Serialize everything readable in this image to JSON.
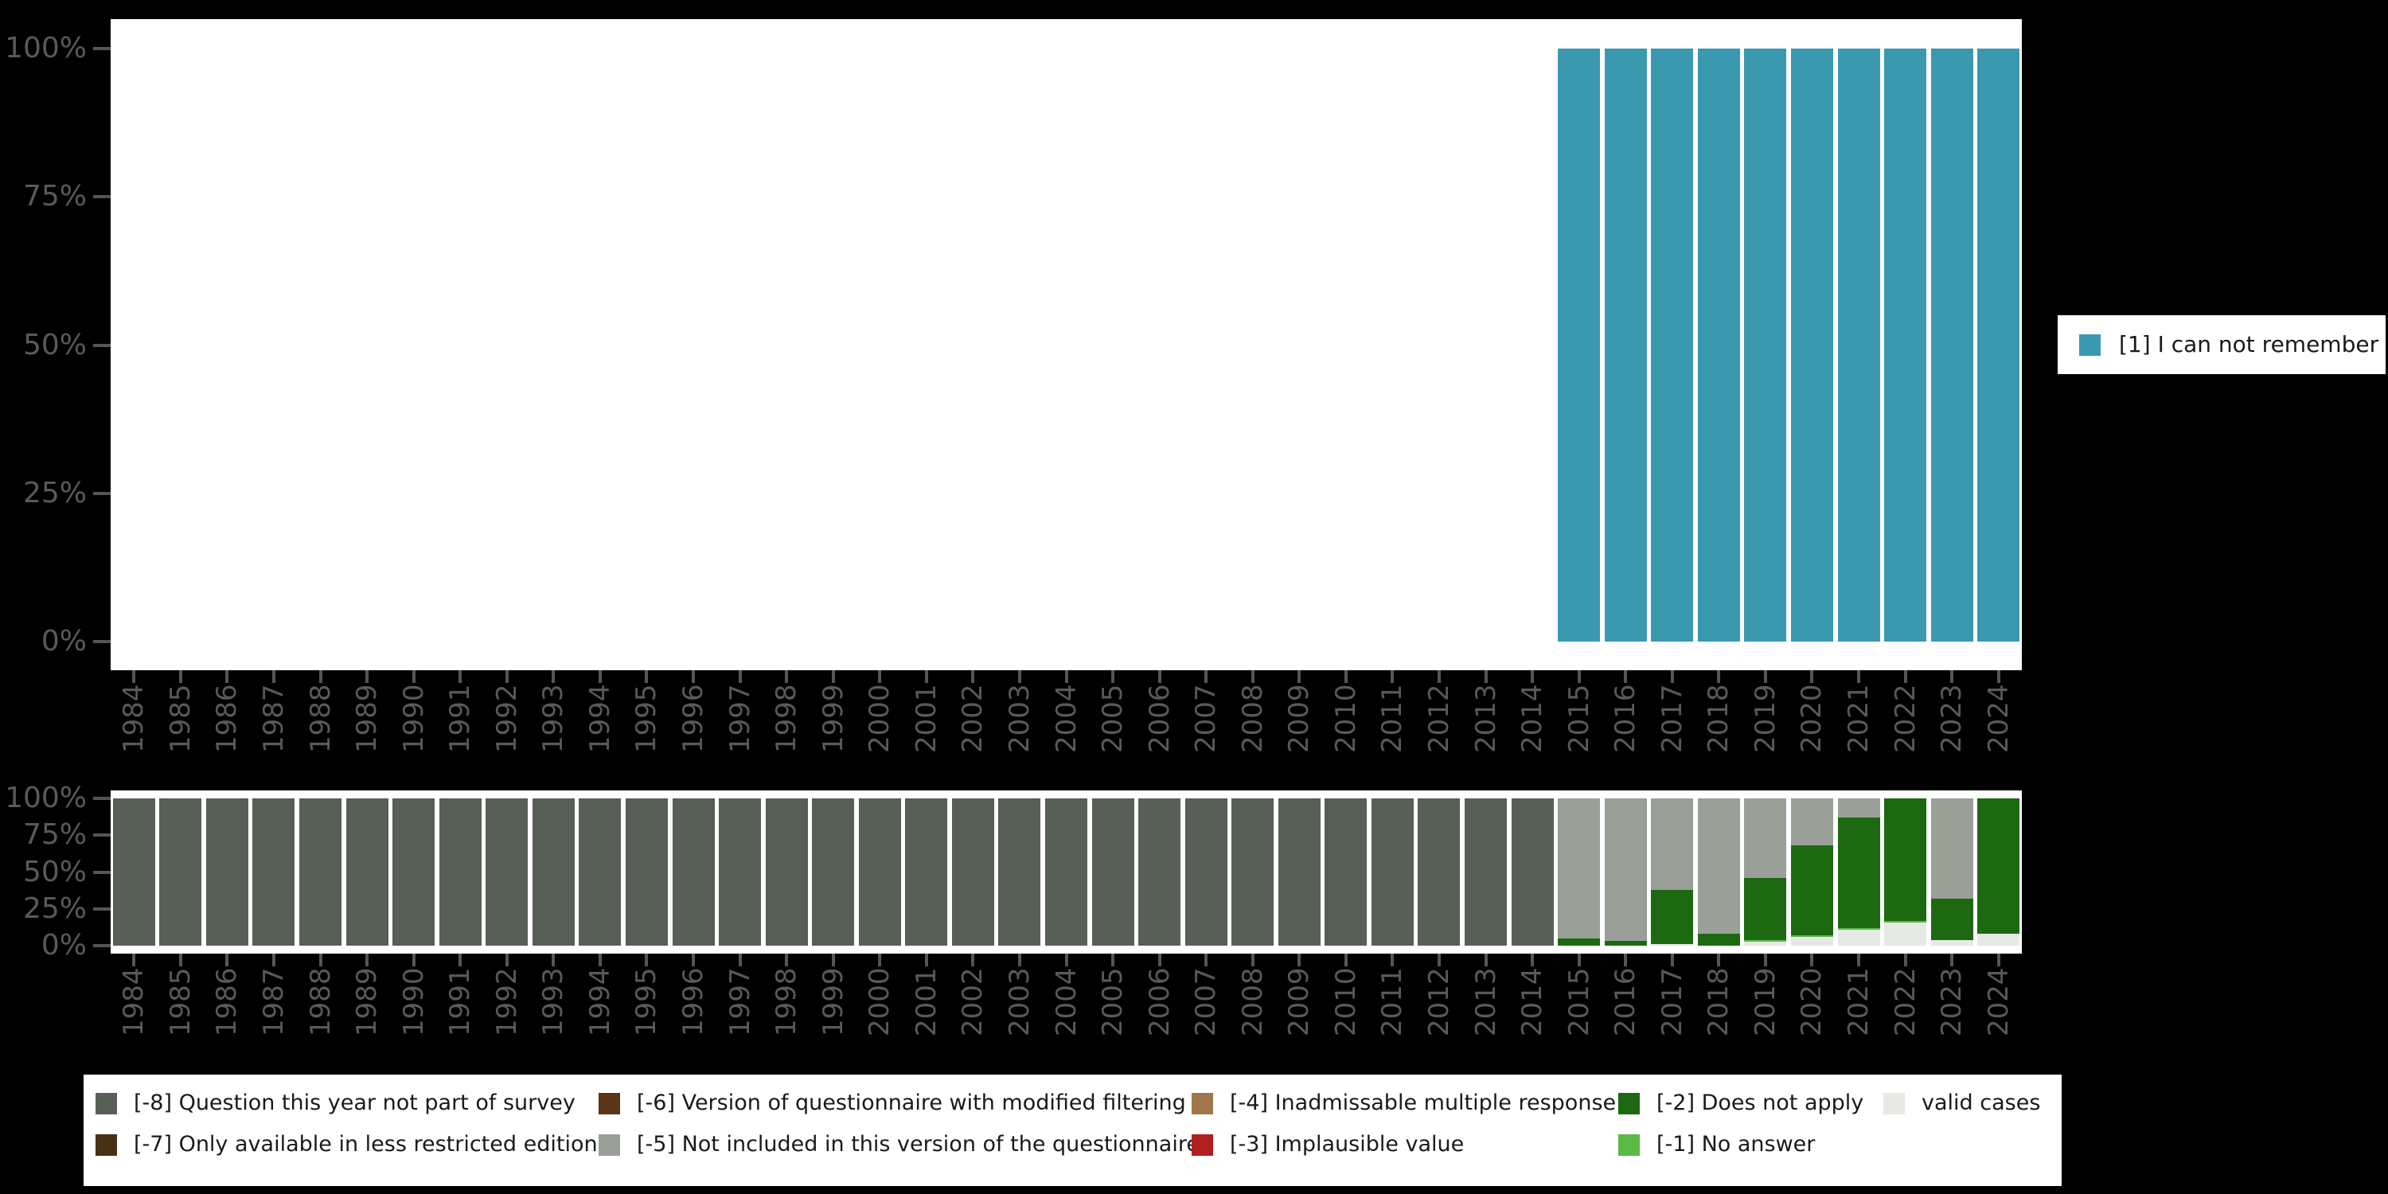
{
  "figure": {
    "background_color": "#000000",
    "plot_background_color": "#ffffff",
    "axis_text_color": "#58595B",
    "tick_color": "#555555",
    "legend_text_color": "#1a1a1a"
  },
  "axis": {
    "y_tick_labels": [
      "100%",
      "75%",
      "50%",
      "25%",
      "0%"
    ],
    "years": [
      "1984",
      "1985",
      "1986",
      "1987",
      "1988",
      "1989",
      "1990",
      "1991",
      "1992",
      "1993",
      "1994",
      "1995",
      "1996",
      "1997",
      "1998",
      "1999",
      "2000",
      "2001",
      "2002",
      "2003",
      "2004",
      "2005",
      "2006",
      "2007",
      "2008",
      "2009",
      "2010",
      "2011",
      "2012",
      "2013",
      "2014",
      "2015",
      "2016",
      "2017",
      "2018",
      "2019",
      "2020",
      "2021",
      "2022",
      "2023",
      "2024"
    ]
  },
  "chart_data": [
    {
      "id": "values-chart",
      "type": "bar",
      "stacked": true,
      "title": "",
      "xlabel": "",
      "ylabel": "",
      "ylim": [
        0,
        100
      ],
      "grid": false,
      "legend_position": "right",
      "ytick_labels": [
        "100%",
        "75%",
        "50%",
        "25%",
        "0%"
      ],
      "categories": [
        "1984",
        "1985",
        "1986",
        "1987",
        "1988",
        "1989",
        "1990",
        "1991",
        "1992",
        "1993",
        "1994",
        "1995",
        "1996",
        "1997",
        "1998",
        "1999",
        "2000",
        "2001",
        "2002",
        "2003",
        "2004",
        "2005",
        "2006",
        "2007",
        "2008",
        "2009",
        "2010",
        "2011",
        "2012",
        "2013",
        "2014",
        "2015",
        "2016",
        "2017",
        "2018",
        "2019",
        "2020",
        "2021",
        "2022",
        "2023",
        "2024"
      ],
      "series": [
        {
          "name": "[1] I can not remember",
          "color": "#3A99AE",
          "values": [
            0,
            0,
            0,
            0,
            0,
            0,
            0,
            0,
            0,
            0,
            0,
            0,
            0,
            0,
            0,
            0,
            0,
            0,
            0,
            0,
            0,
            0,
            0,
            0,
            0,
            0,
            0,
            0,
            0,
            0,
            0,
            100,
            100,
            100,
            100,
            100,
            100,
            100,
            100,
            100,
            100
          ]
        }
      ]
    },
    {
      "id": "missings-chart",
      "type": "bar",
      "stacked": true,
      "title": "",
      "xlabel": "",
      "ylabel": "",
      "ylim": [
        0,
        100
      ],
      "grid": false,
      "legend_position": "bottom",
      "ytick_labels": [
        "100%",
        "75%",
        "50%",
        "25%",
        "0%"
      ],
      "categories": [
        "1984",
        "1985",
        "1986",
        "1987",
        "1988",
        "1989",
        "1990",
        "1991",
        "1992",
        "1993",
        "1994",
        "1995",
        "1996",
        "1997",
        "1998",
        "1999",
        "2000",
        "2001",
        "2002",
        "2003",
        "2004",
        "2005",
        "2006",
        "2007",
        "2008",
        "2009",
        "2010",
        "2011",
        "2012",
        "2013",
        "2014",
        "2015",
        "2016",
        "2017",
        "2018",
        "2019",
        "2020",
        "2021",
        "2022",
        "2023",
        "2024"
      ],
      "series": [
        {
          "name": "valid cases",
          "color": "#E6E9E4",
          "values": [
            0,
            0,
            0,
            0,
            0,
            0,
            0,
            0,
            0,
            0,
            0,
            0,
            0,
            0,
            0,
            0,
            0,
            0,
            0,
            0,
            0,
            0,
            0,
            0,
            0,
            0,
            0,
            0,
            0,
            0,
            0,
            0,
            0,
            1,
            0,
            3,
            6,
            11,
            16,
            4,
            8
          ]
        },
        {
          "name": "[-1] No answer",
          "color": "#5CB946",
          "values": [
            0,
            0,
            0,
            0,
            0,
            0,
            0,
            0,
            0,
            0,
            0,
            0,
            0,
            0,
            0,
            0,
            0,
            0,
            0,
            0,
            0,
            0,
            0,
            0,
            0,
            0,
            0,
            0,
            0,
            0,
            0,
            0,
            0,
            0,
            0,
            1,
            1,
            1,
            1,
            0,
            0
          ]
        },
        {
          "name": "[-2] Does not apply",
          "color": "#1D6912",
          "values": [
            0,
            0,
            0,
            0,
            0,
            0,
            0,
            0,
            0,
            0,
            0,
            0,
            0,
            0,
            0,
            0,
            0,
            0,
            0,
            0,
            0,
            0,
            0,
            0,
            0,
            0,
            0,
            0,
            0,
            0,
            0,
            5,
            3,
            37,
            8,
            42,
            61,
            75,
            83,
            28,
            92
          ]
        },
        {
          "name": "[-5] Not included in this version of the questionnaire",
          "color": "#9AA098",
          "values": [
            0,
            0,
            0,
            0,
            0,
            0,
            0,
            0,
            0,
            0,
            0,
            0,
            0,
            0,
            0,
            0,
            0,
            0,
            0,
            0,
            0,
            0,
            0,
            0,
            0,
            0,
            0,
            0,
            0,
            0,
            0,
            95,
            97,
            62,
            92,
            54,
            32,
            13,
            0,
            68,
            0
          ]
        },
        {
          "name": "[-8] Question this year not part of survey",
          "color": "#575F56",
          "values": [
            100,
            100,
            100,
            100,
            100,
            100,
            100,
            100,
            100,
            100,
            100,
            100,
            100,
            100,
            100,
            100,
            100,
            100,
            100,
            100,
            100,
            100,
            100,
            100,
            100,
            100,
            100,
            100,
            100,
            100,
            100,
            0,
            0,
            0,
            0,
            0,
            0,
            0,
            0,
            0,
            0
          ]
        }
      ]
    }
  ],
  "legend_right": {
    "items": [
      {
        "label": "[1] I can not remember",
        "color": "#3A99AE"
      }
    ]
  },
  "legend_bottom": {
    "items": [
      {
        "label": "[-8] Question this year not part of survey",
        "color": "#575F56",
        "col": 0,
        "row": 0
      },
      {
        "label": "[-7] Only available in less restricted edition",
        "color": "#473015",
        "col": 0,
        "row": 1
      },
      {
        "label": "[-6] Version of questionnaire with modified filtering",
        "color": "#5A3517",
        "col": 1,
        "row": 0
      },
      {
        "label": "[-5] Not included in this version of the questionnaire",
        "color": "#9AA098",
        "col": 1,
        "row": 1
      },
      {
        "label": "[-4] Inadmissable multiple response",
        "color": "#A1764C",
        "col": 2,
        "row": 0
      },
      {
        "label": "[-3] Implausible value",
        "color": "#B02020",
        "col": 2,
        "row": 1
      },
      {
        "label": "[-2] Does not apply",
        "color": "#1D6912",
        "col": 3,
        "row": 0
      },
      {
        "label": "[-1] No answer",
        "color": "#5CB946",
        "col": 3,
        "row": 1
      },
      {
        "label": "valid cases",
        "color": "#E6E9E4",
        "col": 4,
        "row": 0
      }
    ]
  }
}
